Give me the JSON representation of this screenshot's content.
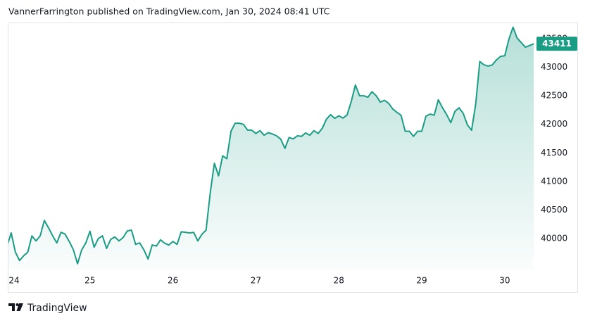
{
  "chart_data": {
    "type": "area",
    "title": "VannerFarrington published on TradingView.com, Jan 30, 2024 08:41 UTC",
    "footer": "TradingView",
    "color": "#1a9c85",
    "grid": false,
    "xlim": [
      24,
      30.4
    ],
    "xticks": [
      24,
      25,
      26,
      27,
      28,
      29,
      30
    ],
    "ylim": [
      39460,
      43770
    ],
    "yticks": [
      40000,
      40500,
      41000,
      41500,
      42000,
      42500,
      43000,
      43500
    ],
    "x": [
      24,
      24.05,
      24.1,
      24.15,
      24.2,
      24.25,
      24.3,
      24.35,
      24.4,
      24.45,
      24.5,
      24.55,
      24.6,
      24.65,
      24.7,
      24.75,
      24.8,
      24.85,
      24.9,
      24.95,
      25,
      25.05,
      25.1,
      25.15,
      25.2,
      25.25,
      25.3,
      25.35,
      25.4,
      25.45,
      25.5,
      25.55,
      25.6,
      25.65,
      25.7,
      25.75,
      25.8,
      25.85,
      25.9,
      25.95,
      26,
      26.05,
      26.1,
      26.15,
      26.2,
      26.25,
      26.3,
      26.35,
      26.4,
      26.45,
      26.5,
      26.55,
      26.6,
      26.65,
      26.7,
      26.75,
      26.8,
      26.85,
      26.9,
      26.95,
      27,
      27.05,
      27.1,
      27.15,
      27.2,
      27.25,
      27.3,
      27.35,
      27.4,
      27.45,
      27.5,
      27.55,
      27.6,
      27.65,
      27.7,
      27.75,
      27.8,
      27.85,
      27.9,
      27.95,
      28,
      28.05,
      28.1,
      28.15,
      28.2,
      28.25,
      28.3,
      28.35,
      28.4,
      28.45,
      28.5,
      28.55,
      28.6,
      28.65,
      28.7,
      28.75,
      28.8,
      28.85,
      28.9,
      28.95,
      29,
      29.05,
      29.1,
      29.15,
      29.2,
      29.25,
      29.3,
      29.35,
      29.4,
      29.45,
      29.5,
      29.55,
      29.6,
      29.65,
      29.7,
      29.75,
      29.8,
      29.85,
      29.9,
      29.95,
      30,
      30.05,
      30.1,
      30.15,
      30.2,
      30.25,
      30.3,
      30.35
    ],
    "values": [
      39865,
      40100,
      39766,
      39618,
      39700,
      39766,
      40049,
      39960,
      40050,
      40320,
      40190,
      40050,
      39926,
      40111,
      40080,
      39950,
      39803,
      39560,
      39803,
      39926,
      40130,
      39850,
      40000,
      40050,
      39830,
      39988,
      40030,
      39960,
      40020,
      40135,
      40150,
      39900,
      39926,
      39803,
      39643,
      39890,
      39870,
      39980,
      39920,
      39889,
      39951,
      39900,
      40120,
      40111,
      40100,
      40110,
      39960,
      40080,
      40150,
      40800,
      41320,
      41100,
      41450,
      41400,
      41880,
      42020,
      42020,
      42000,
      41900,
      41900,
      41840,
      41890,
      41810,
      41855,
      41830,
      41800,
      41740,
      41580,
      41770,
      41745,
      41800,
      41790,
      41850,
      41810,
      41890,
      41840,
      41930,
      42090,
      42170,
      42106,
      42150,
      42110,
      42165,
      42400,
      42690,
      42500,
      42500,
      42475,
      42570,
      42500,
      42390,
      42420,
      42370,
      42270,
      42210,
      42160,
      41880,
      41880,
      41790,
      41880,
      41880,
      42143,
      42180,
      42160,
      42430,
      42290,
      42170,
      42030,
      42230,
      42290,
      42190,
      41990,
      41897,
      42350,
      43100,
      43042,
      43020,
      43040,
      43128,
      43190,
      43200,
      43490,
      43700,
      43510,
      43430,
      43350,
      43380,
      43411
    ]
  }
}
